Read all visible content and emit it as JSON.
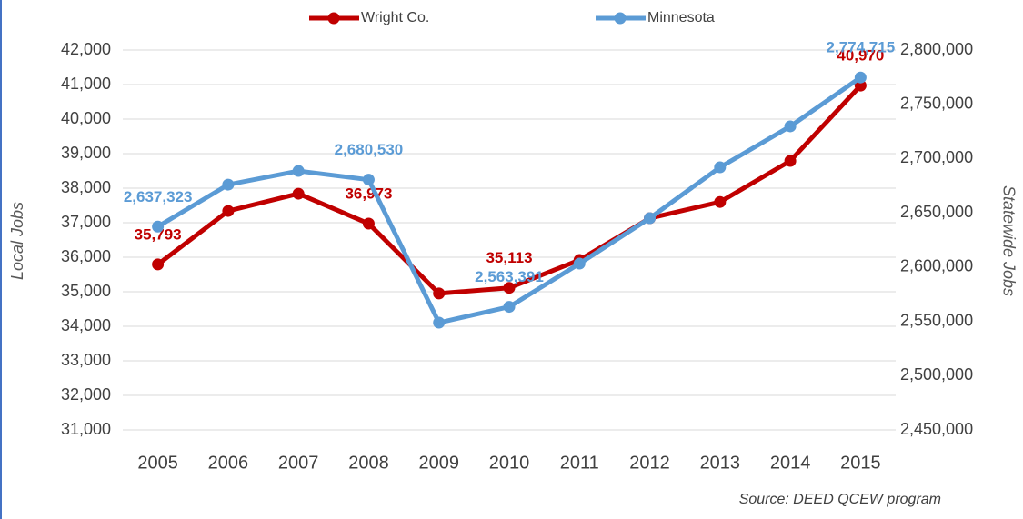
{
  "chart_data": {
    "type": "line",
    "categories": [
      "2005",
      "2006",
      "2007",
      "2008",
      "2009",
      "2010",
      "2011",
      "2012",
      "2013",
      "2014",
      "2015"
    ],
    "series": [
      {
        "name": "Wright Co.",
        "color": "#c00000",
        "axis": "y",
        "values": [
          35793,
          37340,
          37840,
          36973,
          34950,
          35113,
          35920,
          37130,
          37600,
          38790,
          40970
        ],
        "value_labels": [
          "35,793",
          null,
          null,
          "36,973",
          null,
          "35,113",
          null,
          null,
          null,
          null,
          "40,970"
        ]
      },
      {
        "name": "Minnesota",
        "color": "#5b9bd5",
        "axis": "y2",
        "values": [
          2637323,
          2676000,
          2688600,
          2680530,
          2548800,
          2563391,
          2603200,
          2645100,
          2692000,
          2729700,
          2774715
        ],
        "value_labels": [
          "2,637,323",
          null,
          null,
          "2,680,530",
          null,
          "2,563,391",
          null,
          null,
          null,
          null,
          "2,774,715"
        ]
      }
    ],
    "ylim": [
      31000,
      42000
    ],
    "yticks": [
      {
        "value": 31000,
        "label": "31,000"
      },
      {
        "value": 32000,
        "label": "32,000"
      },
      {
        "value": 33000,
        "label": "33,000"
      },
      {
        "value": 34000,
        "label": "34,000"
      },
      {
        "value": 35000,
        "label": "35,000"
      },
      {
        "value": 36000,
        "label": "36,000"
      },
      {
        "value": 37000,
        "label": "37,000"
      },
      {
        "value": 38000,
        "label": "38,000"
      },
      {
        "value": 39000,
        "label": "39,000"
      },
      {
        "value": 40000,
        "label": "40,000"
      },
      {
        "value": 41000,
        "label": "41,000"
      },
      {
        "value": 42000,
        "label": "42,000"
      }
    ],
    "y2lim": [
      2450000,
      2800000
    ],
    "y2ticks": [
      {
        "value": 2450000,
        "label": "2,450,000"
      },
      {
        "value": 2500000,
        "label": "2,500,000"
      },
      {
        "value": 2550000,
        "label": "2,550,000"
      },
      {
        "value": 2600000,
        "label": "2,600,000"
      },
      {
        "value": 2650000,
        "label": "2,650,000"
      },
      {
        "value": 2700000,
        "label": "2,700,000"
      },
      {
        "value": 2750000,
        "label": "2,750,000"
      },
      {
        "value": 2800000,
        "label": "2,800,000"
      }
    ],
    "ylabel": "Local Jobs",
    "y2label": "Statewide Jobs",
    "source": "Source: DEED QCEW program",
    "grid": true
  }
}
